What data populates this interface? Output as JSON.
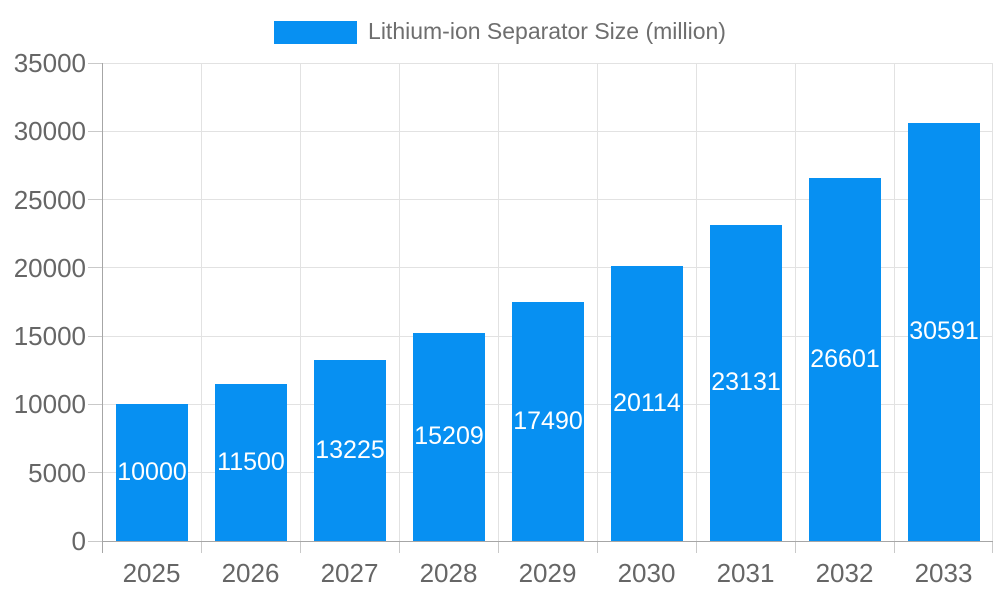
{
  "legend": {
    "label": "Lithium-ion Separator Size (million)"
  },
  "colors": {
    "bar": "#0790f2",
    "grid": "#e2e2e2",
    "axis": "#a6a6a6",
    "tick": "#c9c9c9",
    "axis_label": "#666666",
    "legend_text": "#6e6e6e",
    "value_label": "#ffffff"
  },
  "chart_data": {
    "type": "bar",
    "title": "Lithium-ion Separator Size (million)",
    "categories": [
      "2025",
      "2026",
      "2027",
      "2028",
      "2029",
      "2030",
      "2031",
      "2032",
      "2033"
    ],
    "values": [
      10000,
      11500,
      13225,
      15209,
      17490,
      20114,
      23131,
      26601,
      30591
    ],
    "xlabel": "",
    "ylabel": "",
    "ylim": [
      0,
      35000
    ],
    "ytick_step": 5000,
    "ytick_labels": [
      "0",
      "5000",
      "10000",
      "15000",
      "20000",
      "25000",
      "30000",
      "35000"
    ],
    "grid": true,
    "legend_position": "top",
    "value_label_position": "inside-center",
    "bar_width_fraction": 0.727
  }
}
